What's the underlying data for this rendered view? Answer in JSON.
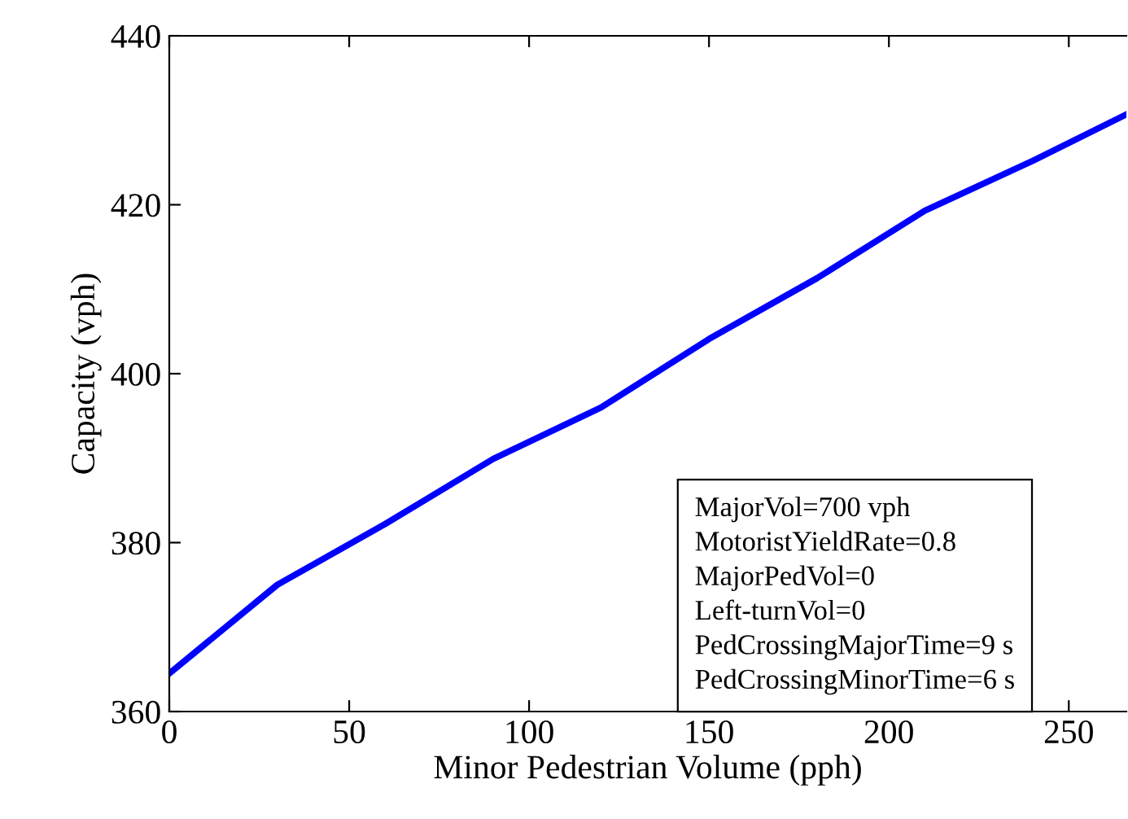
{
  "chart_data": {
    "type": "line",
    "xlabel": "Minor Pedestrian Volume (pph)",
    "ylabel": "Capacity (vph)",
    "x": [
      0,
      30,
      60,
      90,
      120,
      150,
      180,
      210,
      240,
      266
    ],
    "series": [
      {
        "color": "#0000ff",
        "values": [
          364.5,
          375.0,
          382.2,
          389.9,
          396.0,
          404.1,
          411.3,
          419.3,
          425.2,
          430.7
        ]
      }
    ],
    "xlim": [
      0,
      266
    ],
    "xticks": [
      0,
      50,
      100,
      150,
      200,
      250
    ],
    "ylim": [
      360,
      440
    ],
    "yticks": [
      360,
      380,
      400,
      420,
      440
    ],
    "grid": false,
    "marker": "none",
    "line_style": "solid",
    "annotations": [
      "MajorVol=700 vph\nMotoristYieldRate=0.8\nMajorPedVol=0\nLeft-turnVol=0\nPedCrossingMajorTime=9 s\nPedCrossingMinorTime=6 s"
    ]
  }
}
